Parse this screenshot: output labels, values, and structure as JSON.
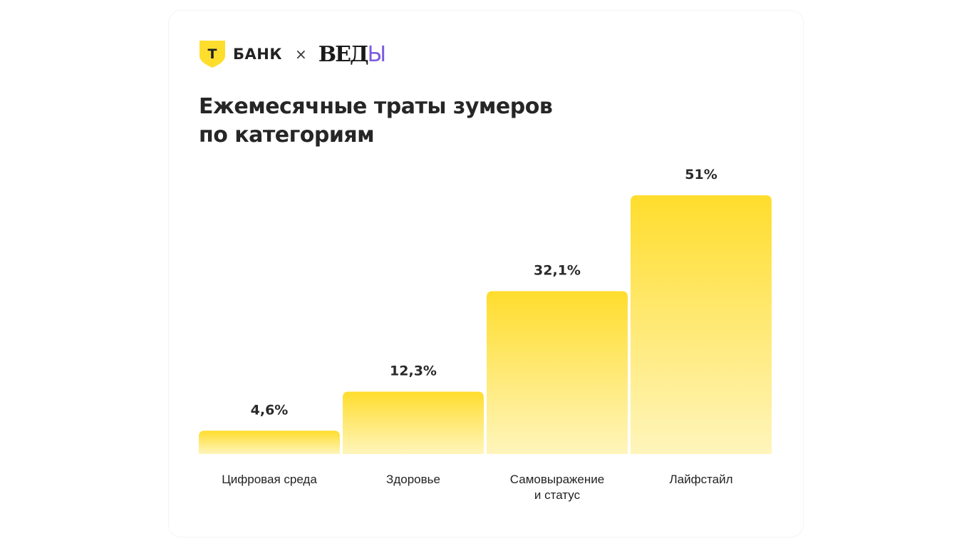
{
  "brand": {
    "bank_label": "БАНК",
    "shield_letter": "Т",
    "separator": "×",
    "partner_logo": "ВЕДЫ",
    "colors": {
      "bank_yellow": "#FFDD2D",
      "partner_purple": "#7B5CE0"
    }
  },
  "chart_data": {
    "type": "bar",
    "title": [
      "Ежемесячные траты зумеров",
      "по категориям"
    ],
    "categories": [
      [
        "Цифровая среда"
      ],
      [
        "Здоровье"
      ],
      [
        "Самовыражение",
        "и статус"
      ],
      [
        "Лайфстайл"
      ]
    ],
    "values": [
      4.6,
      12.3,
      32.1,
      51
    ],
    "data_labels": [
      "4,6%",
      "12,3%",
      "32,1%",
      "51%"
    ],
    "unit": "%",
    "ylim": [
      0,
      51
    ],
    "grid": false,
    "bar_color_gradient": [
      "#FFDD2D",
      "#FFF5BC"
    ]
  }
}
